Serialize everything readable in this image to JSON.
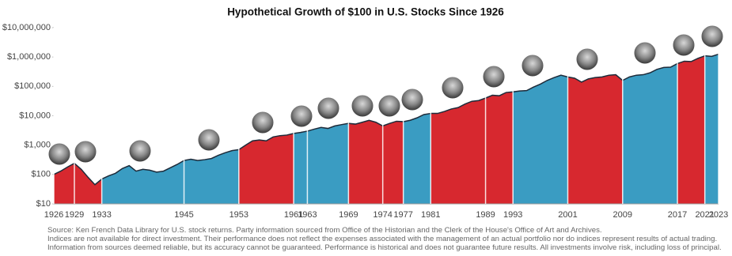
{
  "chart_data": {
    "type": "area",
    "title": "Hypothetical Growth of $100 in U.S. Stocks Since 1926",
    "log_scale": true,
    "xlim": [
      1926,
      2023
    ],
    "xticks": [
      1926,
      1929,
      1933,
      1945,
      1953,
      1961,
      1963,
      1969,
      1974,
      1977,
      1981,
      1989,
      1993,
      2001,
      2009,
      2017,
      2021,
      2023
    ],
    "ylim": [
      10,
      10000000
    ],
    "yticks": [
      {
        "value": 10,
        "label": "$10"
      },
      {
        "value": 100,
        "label": "$100"
      },
      {
        "value": 1000,
        "label": "$1,000"
      },
      {
        "value": 10000,
        "label": "$10,000"
      },
      {
        "value": 100000,
        "label": "$100,000"
      },
      {
        "value": 1000000,
        "label": "$1,000,000"
      },
      {
        "value": 10000000,
        "label": "$10,000,000"
      }
    ],
    "series": [
      {
        "color": "#d7282f",
        "x": [
          1926,
          1927,
          1928,
          1929,
          1930,
          1931,
          1932,
          1933
        ],
        "values": [
          100,
          130,
          180,
          240,
          150,
          80,
          45,
          70
        ]
      },
      {
        "color": "#3a9cc2",
        "x": [
          1933,
          1934,
          1935,
          1936,
          1937,
          1938,
          1939,
          1940,
          1941,
          1942,
          1943,
          1944,
          1945,
          1946,
          1947,
          1948,
          1949,
          1950,
          1951,
          1952,
          1953
        ],
        "values": [
          70,
          90,
          110,
          160,
          200,
          130,
          150,
          140,
          120,
          130,
          170,
          220,
          300,
          330,
          300,
          320,
          350,
          450,
          550,
          650,
          700
        ]
      },
      {
        "color": "#d7282f",
        "x": [
          1953,
          1954,
          1955,
          1956,
          1957,
          1958,
          1959,
          1960,
          1961
        ],
        "values": [
          700,
          1000,
          1400,
          1500,
          1400,
          1900,
          2100,
          2200,
          2500
        ]
      },
      {
        "color": "#3a9cc2",
        "x": [
          1961,
          1962,
          1963,
          1964,
          1965,
          1966,
          1967,
          1968,
          1969
        ],
        "values": [
          2500,
          2700,
          3000,
          3500,
          4000,
          3700,
          4500,
          5000,
          5500
        ]
      },
      {
        "color": "#d7282f",
        "x": [
          1969,
          1970,
          1971,
          1972,
          1973,
          1974,
          1975,
          1976,
          1977
        ],
        "values": [
          5500,
          5200,
          6000,
          7000,
          6000,
          4500,
          5500,
          6500,
          6300
        ]
      },
      {
        "color": "#3a9cc2",
        "x": [
          1977,
          1978,
          1979,
          1980,
          1981
        ],
        "values": [
          6300,
          7000,
          8500,
          11000,
          12000
        ]
      },
      {
        "color": "#d7282f",
        "x": [
          1981,
          1982,
          1983,
          1984,
          1985,
          1986,
          1987,
          1988,
          1989,
          1990,
          1991,
          1992,
          1993
        ],
        "values": [
          12000,
          12000,
          14000,
          17000,
          19000,
          25000,
          31000,
          33000,
          40000,
          50000,
          48000,
          62000,
          65000
        ]
      },
      {
        "color": "#3a9cc2",
        "x": [
          1993,
          1994,
          1995,
          1996,
          1997,
          1998,
          1999,
          2000,
          2001
        ],
        "values": [
          65000,
          70000,
          72000,
          95000,
          120000,
          160000,
          200000,
          240000,
          210000
        ]
      },
      {
        "color": "#d7282f",
        "x": [
          2001,
          2002,
          2003,
          2004,
          2005,
          2006,
          2007,
          2008,
          2009
        ],
        "values": [
          210000,
          190000,
          140000,
          180000,
          200000,
          210000,
          240000,
          250000,
          160000
        ]
      },
      {
        "color": "#3a9cc2",
        "x": [
          2009,
          2010,
          2011,
          2012,
          2013,
          2014,
          2015,
          2016,
          2017
        ],
        "values": [
          160000,
          210000,
          240000,
          250000,
          290000,
          380000,
          440000,
          450000,
          600000
        ]
      },
      {
        "color": "#d7282f",
        "x": [
          2017,
          2018,
          2019,
          2020,
          2021
        ],
        "values": [
          600000,
          720000,
          700000,
          900000,
          1100000
        ]
      },
      {
        "color": "#3a9cc2",
        "x": [
          2021,
          2022,
          2023
        ],
        "values": [
          1100000,
          1050000,
          1250000
        ]
      }
    ],
    "source": "Source: Ken French Data Library for U.S. stock returns. Party information sourced from Office of the Historian and the Clerk of the House's Office of Art and Archives.",
    "notes": "Indices are not available for direct investment. Their performance does not reflect the expenses associated with the management of an actual portfolio nor do indices represent results of actual trading. Information from sources deemed reliable, but its accuracy cannot be guaranteed. Performance is historical and does not guarantee future results. All investments involve risk, including loss of principal."
  }
}
